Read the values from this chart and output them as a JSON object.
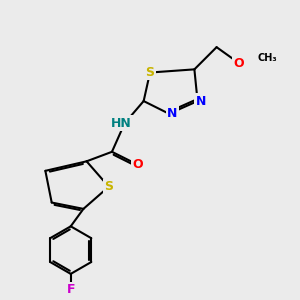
{
  "background_color": "#ebebeb",
  "colors": {
    "S": "#c8b400",
    "N": "#0000ff",
    "O": "#ff0000",
    "F": "#cc00cc",
    "C": "#000000",
    "NH": "#008080",
    "bond": "#000000"
  },
  "bond_lw": 1.5,
  "font_size": 9,
  "font_size_small": 8
}
